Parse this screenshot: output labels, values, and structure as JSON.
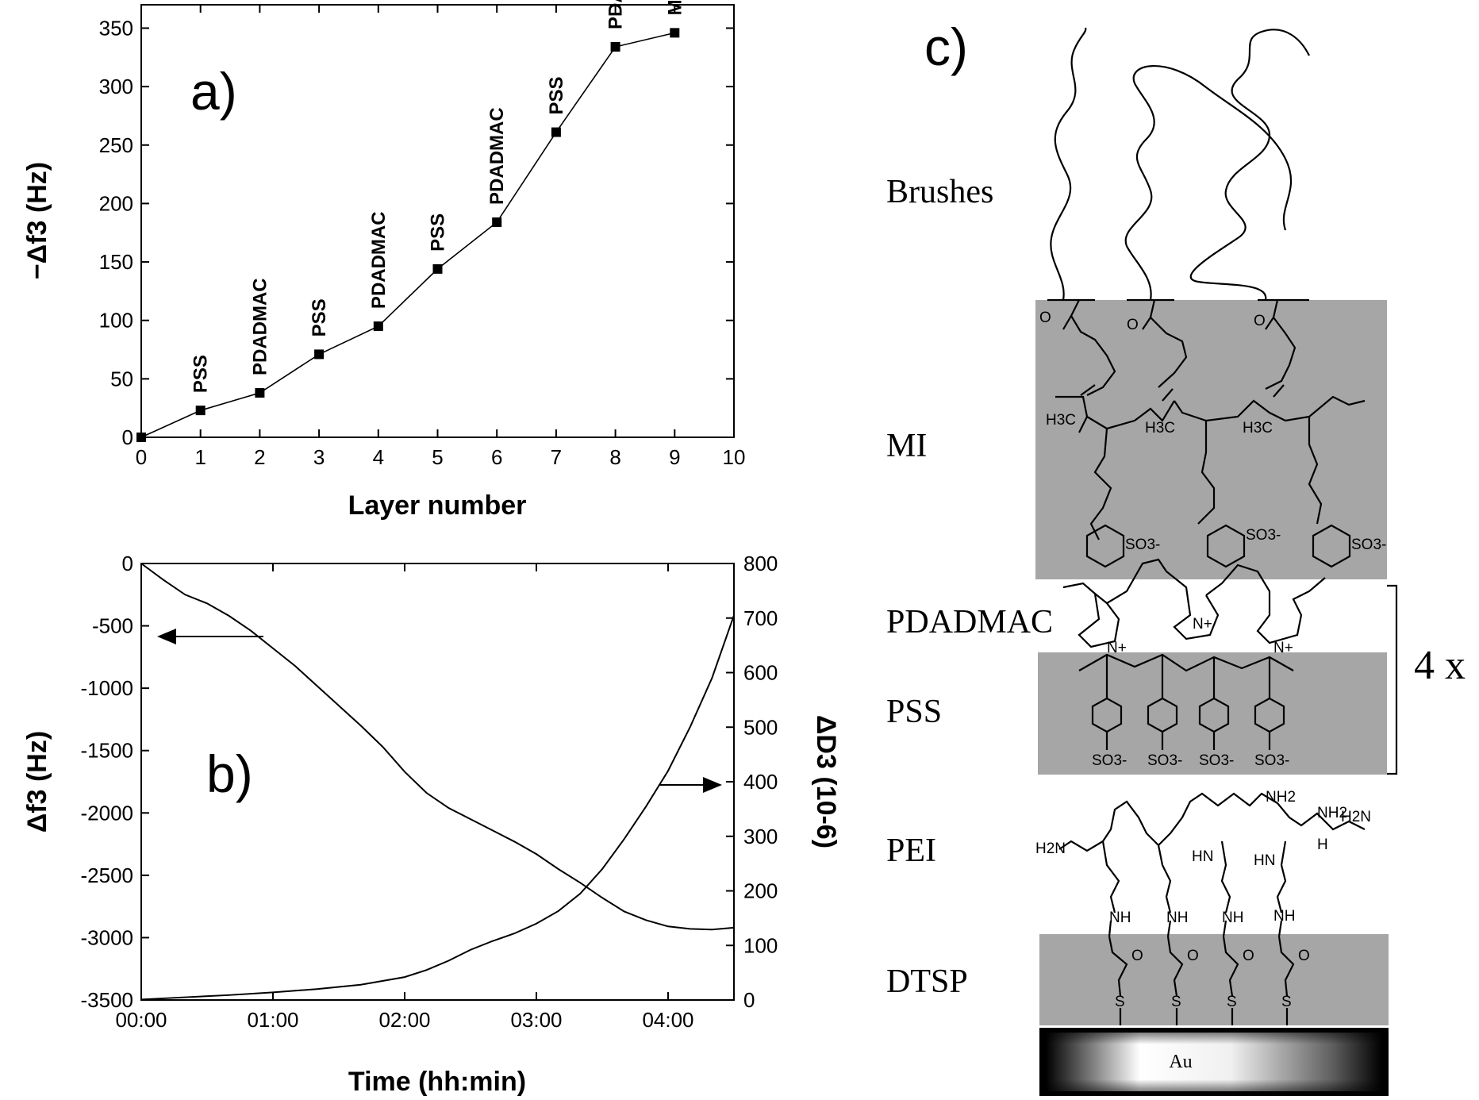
{
  "chart_data": [
    {
      "type": "line",
      "panel_label": "a)",
      "xlabel": "Layer number",
      "ylabel": "−Δf3 (Hz)",
      "xlim": [
        0,
        10
      ],
      "ylim": [
        0,
        370
      ],
      "xticks": [
        "0",
        "1",
        "2",
        "3",
        "4",
        "5",
        "6",
        "7",
        "8",
        "9",
        "10"
      ],
      "yticks": [
        "0",
        "50",
        "100",
        "150",
        "200",
        "250",
        "300",
        "350"
      ],
      "x": [
        0,
        1,
        2,
        3,
        4,
        5,
        6,
        7,
        8,
        9
      ],
      "y": [
        0,
        23,
        38,
        71,
        95,
        144,
        184,
        261,
        334,
        346
      ],
      "point_labels": [
        "",
        "PSS",
        "PDADMAC",
        "PSS",
        "PDADMAC",
        "PSS",
        "PDADMAC",
        "PSS",
        "PDADMAC",
        "MI"
      ],
      "marker": "square",
      "grid": false
    },
    {
      "type": "line",
      "panel_label": "b)",
      "xlabel": "Time (hh:min)",
      "ylabel_left": "Δf3 (Hz)",
      "ylabel_right": "ΔD3 (10-6)",
      "xlim": [
        "00:00",
        "04:30"
      ],
      "xticks": [
        "00:00",
        "01:00",
        "02:00",
        "03:00",
        "04:00"
      ],
      "ylim_left": [
        -3500,
        0
      ],
      "ylim_right": [
        0,
        800
      ],
      "yticks_left": [
        "0",
        "-500",
        "-1000",
        "-1500",
        "-2000",
        "-2500",
        "-3000",
        "-3500"
      ],
      "yticks_right": [
        "0",
        "100",
        "200",
        "300",
        "400",
        "500",
        "600",
        "700",
        "800"
      ],
      "series": [
        {
          "axis": "left",
          "x": [
            "00:00",
            "00:10",
            "00:20",
            "00:30",
            "00:40",
            "00:50",
            "01:00",
            "01:10",
            "01:20",
            "01:30",
            "01:40",
            "01:50",
            "02:00",
            "02:10",
            "02:20",
            "02:30",
            "02:40",
            "02:50",
            "03:00",
            "03:10",
            "03:20",
            "03:30",
            "03:40",
            "03:50",
            "04:00",
            "04:10",
            "04:20",
            "04:30"
          ],
          "values": [
            0,
            -130,
            -250,
            -320,
            -420,
            -540,
            -680,
            -820,
            -980,
            -1140,
            -1300,
            -1470,
            -1670,
            -1840,
            -1960,
            -2050,
            -2140,
            -2230,
            -2330,
            -2450,
            -2560,
            -2680,
            -2790,
            -2860,
            -2910,
            -2930,
            -2935,
            -2920
          ]
        },
        {
          "axis": "right",
          "x": [
            "00:00",
            "00:20",
            "00:40",
            "01:00",
            "01:20",
            "01:40",
            "02:00",
            "02:10",
            "02:20",
            "02:30",
            "02:40",
            "02:50",
            "03:00",
            "03:10",
            "03:20",
            "03:30",
            "03:40",
            "03:50",
            "04:00",
            "04:10",
            "04:20",
            "04:30"
          ],
          "values": [
            1,
            5,
            9,
            14,
            20,
            28,
            42,
            55,
            72,
            92,
            108,
            122,
            140,
            163,
            195,
            240,
            295,
            355,
            420,
            500,
            590,
            705
          ]
        }
      ],
      "arrows": [
        "left",
        "right"
      ],
      "grid": false
    }
  ],
  "schematic": {
    "panel_label": "c)",
    "layers": [
      "Brushes",
      "MI",
      "PDADMAC",
      "PSS",
      "PEI",
      "DTSP"
    ],
    "repeat_label": "4 x",
    "substrate_label": "Au",
    "chem_labels": {
      "ch3": "H3C",
      "so3": "SO3-",
      "nh2": "NH2",
      "h2n": "H2N",
      "nh": "NH",
      "hn": "HN",
      "n": "N",
      "h": "H",
      "o": "O",
      "s": "S",
      "nplus": "N+"
    }
  }
}
